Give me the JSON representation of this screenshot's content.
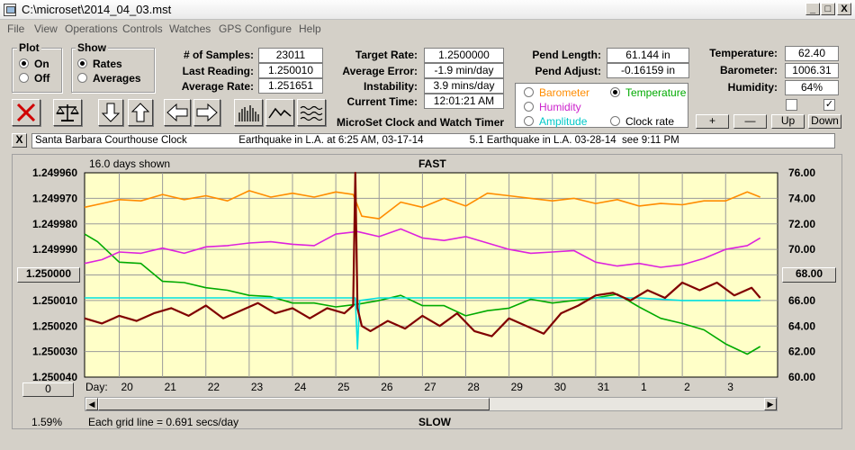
{
  "window": {
    "title": "C:\\microset\\2014_04_03.mst",
    "min": "_",
    "max": "□",
    "close": "X"
  },
  "menu": [
    "File",
    "View",
    "Operations",
    "Controls",
    "Watches",
    "GPS",
    "Configure",
    "Help"
  ],
  "plot_group": {
    "title": "Plot",
    "on": "On",
    "off": "Off",
    "selected": "On"
  },
  "show_group": {
    "title": "Show",
    "rates": "Rates",
    "averages": "Averages",
    "selected": "Rates"
  },
  "stats": {
    "samples_label": "# of Samples:",
    "samples": "23011",
    "last_label": "Last Reading:",
    "last": "1.250010",
    "avg_label": "Average Rate:",
    "avg": "1.251651"
  },
  "rates": {
    "target_label": "Target Rate:",
    "target": "1.2500000",
    "error_label": "Average Error:",
    "error": "-1.9 min/day",
    "instab_label": "Instability:",
    "instab": "3.9 mins/day",
    "time_label": "Current Time:",
    "time": "12:01:21 AM"
  },
  "pendulum": {
    "length_label": "Pend Length:",
    "length": "61.144 in",
    "adjust_label": "Pend Adjust:",
    "adjust": "-0.16159 in"
  },
  "env": {
    "temp_label": "Temperature:",
    "temp": "62.40",
    "baro_label": "Barometer:",
    "baro": "1006.31",
    "hum_label": "Humidity:",
    "hum": "64%",
    "chk1": "",
    "chk2": "✓"
  },
  "sensor_options": {
    "barometer": "Barometer",
    "temperature": "Temperature",
    "humidity": "Humidity",
    "amplitude": "Amplitude",
    "clock_rate": "Clock rate",
    "selected": "Temperature"
  },
  "adjust_buttons": {
    "plus": "+",
    "minus": "—",
    "up": "Up",
    "down": "Down"
  },
  "app_caption": "MicroSet Clock and Watch Timer",
  "notes": {
    "close": "X",
    "text": "Santa Barbara Courthouse Clock                  Earthquake in L.A. at 6:25 AM, 03-17-14                5.1 Earthquake in L.A. 03-28-14  see 9:11 PM"
  },
  "chart_header": {
    "days_shown": "16.0 days shown",
    "top": "FAST",
    "bottom": "SLOW",
    "grid_note": "Each grid line = 0.691 secs/day",
    "percent": "1.59%",
    "day_label": "Day:"
  },
  "center_rate_button": "1.250000",
  "center_temp_button": "68.00",
  "scroll_value_button": "0",
  "colors": {
    "barometer": "#ff8c00",
    "temperature": "#00aa00",
    "humidity": "#dd22dd",
    "amplitude": "#00e0e0",
    "rate": "#800000",
    "plot_bg": "#ffffc8"
  },
  "chart_data": {
    "type": "line",
    "x_label": "Day:",
    "x_ticks": [
      "20",
      "21",
      "22",
      "23",
      "24",
      "25",
      "26",
      "27",
      "28",
      "29",
      "30",
      "31",
      "1",
      "2",
      "3"
    ],
    "y_left": {
      "ticks": [
        "1.249960",
        "1.249970",
        "1.249980",
        "1.249990",
        "1.250000",
        "1.250010",
        "1.250020",
        "1.250030",
        "1.250040"
      ],
      "range": [
        1.24996,
        1.25004
      ],
      "inverted": true
    },
    "y_right": {
      "ticks": [
        "76.00",
        "74.00",
        "72.00",
        "70.00",
        "68.00",
        "66.00",
        "64.00",
        "62.00",
        "60.00"
      ],
      "range": [
        60,
        76
      ]
    },
    "x_range": [
      19.2,
      35.2
    ],
    "grid": true,
    "series": [
      {
        "name": "Barometer",
        "axis": "right",
        "x": [
          19.2,
          19.6,
          20.0,
          20.5,
          21.0,
          21.5,
          22.0,
          22.5,
          23.0,
          23.5,
          24.0,
          24.5,
          25.0,
          25.4,
          25.6,
          26.0,
          26.5,
          27.0,
          27.5,
          28.0,
          28.5,
          29.0,
          29.5,
          30.0,
          30.5,
          31.0,
          31.5,
          32.0,
          32.5,
          33.0,
          33.5,
          34.0,
          34.5,
          34.8
        ],
        "values": [
          73.3,
          73.6,
          73.9,
          73.8,
          74.3,
          73.9,
          74.2,
          73.8,
          74.6,
          74.1,
          74.4,
          74.1,
          74.5,
          74.3,
          72.6,
          72.4,
          73.7,
          73.3,
          74.0,
          73.4,
          74.4,
          74.2,
          74.0,
          73.8,
          74.0,
          73.6,
          73.9,
          73.4,
          73.6,
          73.5,
          73.8,
          73.8,
          74.5,
          74.1
        ]
      },
      {
        "name": "Temperature",
        "axis": "right",
        "x": [
          19.2,
          19.5,
          20.0,
          20.5,
          21.0,
          21.5,
          22.0,
          22.5,
          23.0,
          23.5,
          24.0,
          24.5,
          25.0,
          25.5,
          26.0,
          26.5,
          27.0,
          27.5,
          28.0,
          28.5,
          29.0,
          29.5,
          30.0,
          30.5,
          31.0,
          31.5,
          32.0,
          32.5,
          33.0,
          33.5,
          34.0,
          34.5,
          34.8
        ],
        "values": [
          71.2,
          70.6,
          69.0,
          68.9,
          67.5,
          67.4,
          67.0,
          66.8,
          66.4,
          66.3,
          65.8,
          65.8,
          65.5,
          65.7,
          66.0,
          66.4,
          65.6,
          65.6,
          64.8,
          65.2,
          65.4,
          66.1,
          65.8,
          66.0,
          66.2,
          66.5,
          65.5,
          64.6,
          64.2,
          63.7,
          62.6,
          61.8,
          62.4
        ]
      },
      {
        "name": "Humidity",
        "axis": "right",
        "x": [
          19.2,
          19.6,
          20.0,
          20.5,
          21.0,
          21.5,
          22.0,
          22.5,
          23.0,
          23.5,
          24.0,
          24.5,
          25.0,
          25.5,
          26.0,
          26.5,
          27.0,
          27.5,
          28.0,
          28.5,
          29.0,
          29.5,
          30.0,
          30.5,
          31.0,
          31.5,
          32.0,
          32.5,
          33.0,
          33.5,
          34.0,
          34.5,
          34.8
        ],
        "values": [
          68.9,
          69.2,
          69.8,
          69.7,
          70.1,
          69.7,
          70.2,
          70.3,
          70.5,
          70.6,
          70.4,
          70.3,
          71.2,
          71.4,
          71.0,
          71.6,
          70.9,
          70.7,
          71.0,
          70.5,
          70.0,
          69.7,
          69.8,
          69.9,
          69.0,
          68.7,
          68.9,
          68.6,
          68.8,
          69.3,
          70.0,
          70.3,
          70.9
        ]
      },
      {
        "name": "Amplitude",
        "axis": "left",
        "x": [
          19.2,
          20.0,
          21.0,
          22.0,
          23.0,
          24.0,
          25.0,
          25.45,
          25.5,
          25.55,
          26.0,
          27.0,
          28.0,
          29.0,
          30.0,
          31.0,
          32.0,
          33.0,
          34.0,
          34.8
        ],
        "values": [
          1.250009,
          1.250009,
          1.250009,
          1.250009,
          1.250009,
          1.250009,
          1.250009,
          1.250009,
          1.250029,
          1.25001,
          1.250009,
          1.250009,
          1.250009,
          1.250009,
          1.250009,
          1.250009,
          1.250009,
          1.25001,
          1.25001,
          1.25001
        ]
      },
      {
        "name": "Rate",
        "axis": "left",
        "x": [
          19.2,
          19.6,
          20.0,
          20.4,
          20.8,
          21.2,
          21.6,
          22.0,
          22.4,
          22.8,
          23.2,
          23.6,
          24.0,
          24.4,
          24.8,
          25.2,
          25.4,
          25.45,
          25.5,
          25.6,
          25.8,
          26.2,
          26.6,
          27.0,
          27.4,
          27.8,
          28.2,
          28.6,
          29.0,
          29.4,
          29.8,
          30.2,
          30.6,
          31.0,
          31.4,
          31.8,
          32.2,
          32.6,
          33.0,
          33.4,
          33.8,
          34.2,
          34.6,
          34.8
        ],
        "values": [
          1.250017,
          1.250019,
          1.250016,
          1.250018,
          1.250015,
          1.250013,
          1.250016,
          1.250012,
          1.250017,
          1.250014,
          1.250011,
          1.250015,
          1.250013,
          1.250017,
          1.250013,
          1.250015,
          1.250012,
          1.24996,
          1.250013,
          1.25002,
          1.250022,
          1.250018,
          1.250021,
          1.250016,
          1.25002,
          1.250015,
          1.250022,
          1.250024,
          1.250017,
          1.25002,
          1.250023,
          1.250015,
          1.250012,
          1.250008,
          1.250007,
          1.25001,
          1.250006,
          1.250009,
          1.250003,
          1.250006,
          1.250003,
          1.250008,
          1.250005,
          1.250009
        ]
      }
    ]
  }
}
